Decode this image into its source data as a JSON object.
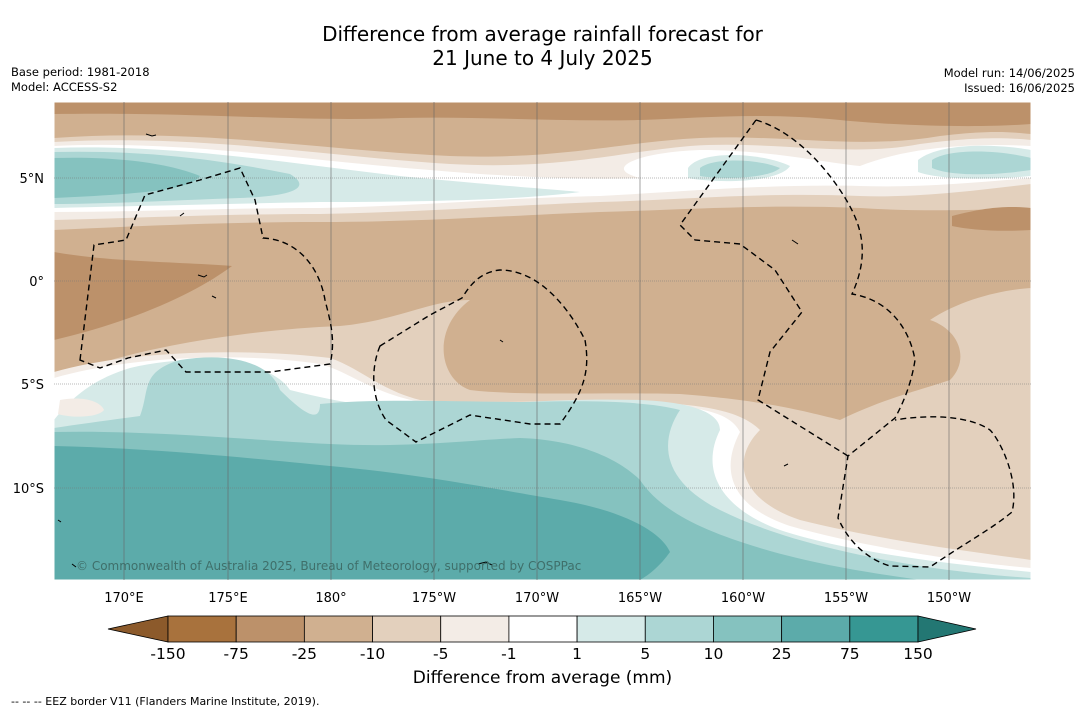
{
  "title_line1": "Difference from average rainfall forecast for",
  "title_line2": "21 June to 4 July 2025",
  "base_period": "Base period: 1981-2018",
  "model": "Model: ACCESS-S2",
  "model_run": "Model run: 14/06/2025",
  "issued": "Issued: 16/06/2025",
  "lat_labels": [
    "5°N",
    "0°",
    "5°S",
    "10°S"
  ],
  "lon_labels": [
    "170°E",
    "175°E",
    "180°",
    "175°W",
    "170°W",
    "165°W",
    "160°W",
    "155°W",
    "150°W"
  ],
  "copyright": "© Commonwealth of Australia 2025, Bureau of Meteorology, supported by COSPPac",
  "legend": {
    "title": "Difference from average (mm)",
    "ticks": [
      "-150",
      "-75",
      "-25",
      "-10",
      "-5",
      "-1",
      "1",
      "5",
      "10",
      "25",
      "75",
      "150"
    ],
    "colors": [
      "#a8723d",
      "#bc916a",
      "#d0b090",
      "#e3d0bd",
      "#f3ece6",
      "#ffffff",
      "#d6eae8",
      "#acd6d4",
      "#85c2bf",
      "#5cabaa",
      "#369793"
    ]
  },
  "footnote": "-- -- -- EEZ border V11 (Flanders Marine Institute, 2019)."
}
